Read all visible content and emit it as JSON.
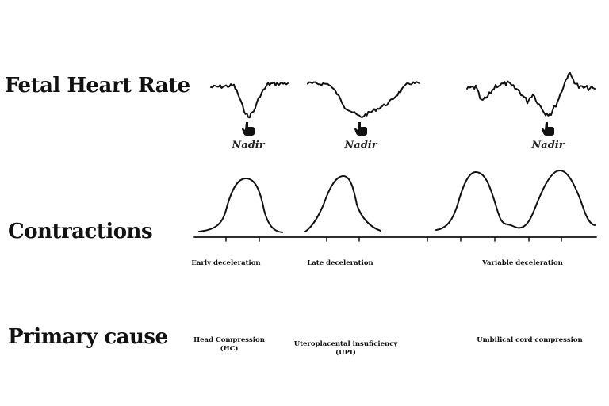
{
  "rows": {
    "fhr": "Fetal Heart Rate",
    "contractions": "Contractions",
    "cause": "Primary cause"
  },
  "nadir_label": "Nadir",
  "decelerations": [
    {
      "name": "Early deceleration",
      "cause": "Head Compression",
      "cause_abbr": "(HC)"
    },
    {
      "name": "Late deceleration",
      "cause": "Uteroplacental insuficiency",
      "cause_abbr": "(UPI)"
    },
    {
      "name": "Variable deceleration",
      "cause": "Umbilical cord compression",
      "cause_abbr": ""
    }
  ],
  "icons": [
    "pointing-hand-icon"
  ]
}
